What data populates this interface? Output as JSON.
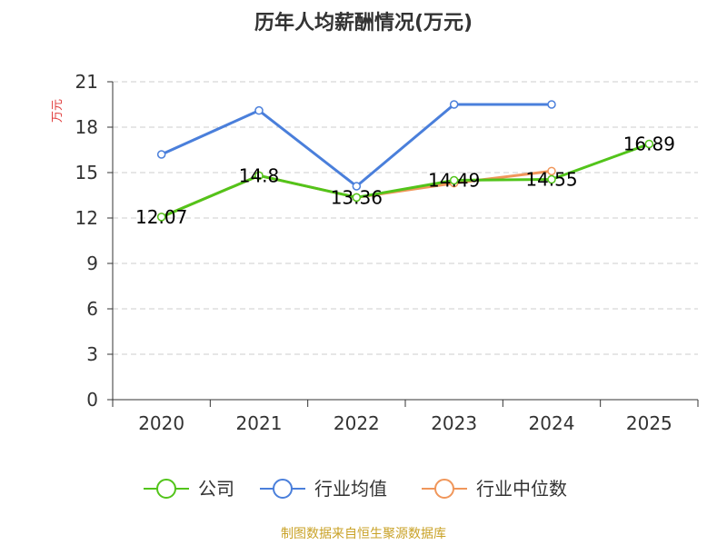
{
  "chart_data": {
    "type": "line",
    "title": "历年人均薪酬情况(万元)",
    "ylabel": "万元",
    "xlabel": "",
    "categories": [
      "2020",
      "2021",
      "2022",
      "2023",
      "2024",
      "2025"
    ],
    "ylim": [
      0,
      21
    ],
    "yticks": [
      0,
      3,
      6,
      9,
      12,
      15,
      18,
      21
    ],
    "grid": true,
    "legend_position": "bottom",
    "series": [
      {
        "name": "公司",
        "color": "#52c41a",
        "values": [
          12.07,
          14.8,
          13.36,
          14.49,
          14.55,
          16.89
        ]
      },
      {
        "name": "行业均值",
        "color": "#4a7fdb",
        "values": [
          16.2,
          19.1,
          14.1,
          19.5,
          19.5,
          null
        ]
      },
      {
        "name": "行业中位数",
        "color": "#f0965a",
        "values": [
          12.07,
          14.8,
          13.36,
          14.3,
          15.1,
          null
        ]
      }
    ],
    "data_labels": [
      {
        "category": "2020",
        "text": "12.07"
      },
      {
        "category": "2021",
        "text": "14.8"
      },
      {
        "category": "2022",
        "text": "13.36"
      },
      {
        "category": "2023",
        "text": "14.49"
      },
      {
        "category": "2024",
        "text": "14.55"
      },
      {
        "category": "2025",
        "text": "16.89"
      }
    ]
  },
  "source_text": "制图数据来自恒生聚源数据库"
}
